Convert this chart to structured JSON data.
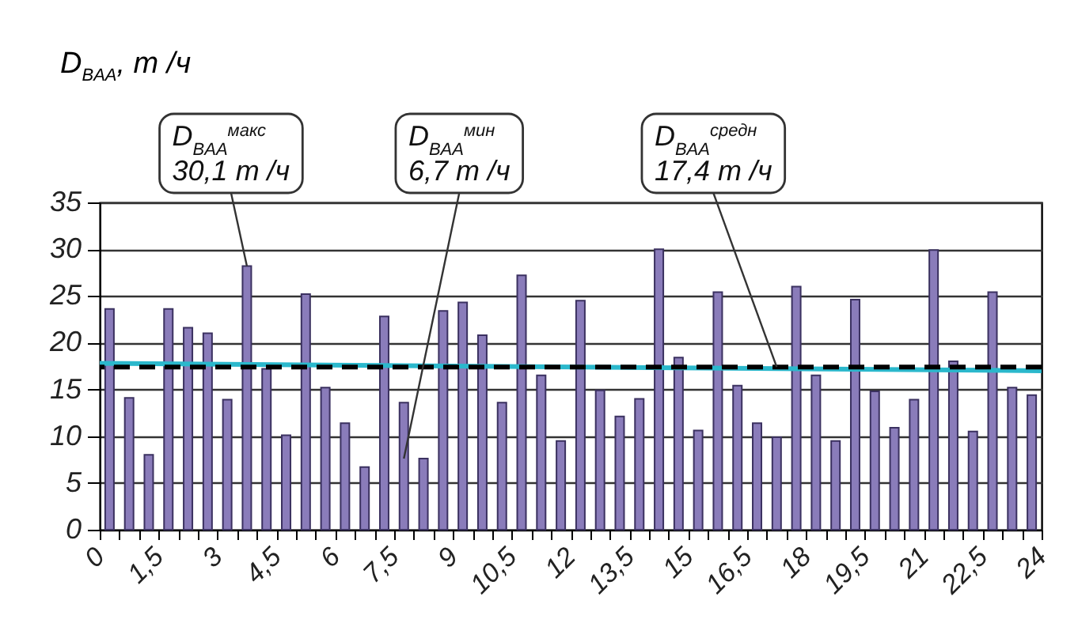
{
  "chart_data": {
    "type": "bar",
    "ylabel": "D$_{BAA}$, т /ч",
    "x": [
      0.25,
      0.75,
      1.25,
      1.75,
      2.25,
      2.75,
      3.25,
      3.75,
      4.25,
      4.75,
      5.25,
      5.75,
      6.25,
      6.75,
      7.25,
      7.75,
      8.25,
      8.75,
      9.25,
      9.75,
      10.25,
      10.75,
      11.25,
      11.75,
      12.25,
      12.75,
      13.25,
      13.75,
      14.25,
      14.75,
      15.25,
      15.75,
      16.25,
      16.75,
      17.25,
      17.75,
      18.25,
      18.75,
      19.25,
      19.75,
      20.25,
      20.75,
      21.25,
      21.75,
      22.25,
      22.75,
      23.25,
      23.75
    ],
    "series": [
      {
        "color": "#8a7cba",
        "values": [
          23.6,
          14.1,
          8.0,
          23.6,
          21.6,
          21.0,
          13.9,
          28.2,
          17.2,
          10.1,
          25.2,
          15.2,
          11.4,
          6.7,
          22.8,
          13.6,
          7.6,
          23.4,
          24.3,
          20.8,
          13.6,
          27.2,
          16.5,
          9.5,
          24.5,
          14.9,
          12.1,
          14.0,
          30.0,
          18.4,
          10.6,
          25.4,
          15.4,
          11.4,
          9.9,
          26.0,
          16.5,
          9.5,
          24.6,
          14.8,
          10.9,
          13.9,
          29.9,
          18.0,
          10.5,
          25.4,
          15.2,
          14.4
        ]
      },
      {
        "type": "line",
        "color": "#2bb8cc",
        "x": [
          0,
          24
        ],
        "values": [
          17.8,
          17.0
        ]
      }
    ],
    "ref_lines": [
      {
        "axis": "y",
        "value": 17.4,
        "color": "#000000",
        "line_style": "dashed"
      }
    ],
    "annotations": [
      {
        "text": "D$_{BAA}$$^{макс}$\n30,1 т /ч",
        "x": 3.75,
        "y": 28.2
      },
      {
        "text": "D$_{BAA}$$^{мин}$\n6,7 т /ч",
        "x": 7.75,
        "y": 7.6
      },
      {
        "text": "D$_{BAA}$$^{средн}$\n17,4 т /ч",
        "x": 17.25,
        "y": 17.4
      }
    ],
    "xlim": [
      0,
      24
    ],
    "xticks": [
      0,
      {
        "value": 0.5,
        "label": null
      },
      {
        "value": 1,
        "label": null
      },
      {
        "value": 1.5,
        "label": "1,5"
      },
      {
        "value": 2,
        "label": null
      },
      {
        "value": 2.5,
        "label": null
      },
      3,
      {
        "value": 3.5,
        "label": null
      },
      {
        "value": 4,
        "label": null
      },
      {
        "value": 4.5,
        "label": "4,5"
      },
      {
        "value": 5,
        "label": null
      },
      {
        "value": 5.5,
        "label": null
      },
      6,
      {
        "value": 6.5,
        "label": null
      },
      {
        "value": 7,
        "label": null
      },
      {
        "value": 7.5,
        "label": "7,5"
      },
      {
        "value": 8,
        "label": null
      },
      {
        "value": 8.5,
        "label": null
      },
      9,
      {
        "value": 9.5,
        "label": null
      },
      {
        "value": 10,
        "label": null
      },
      {
        "value": 10.5,
        "label": "10,5"
      },
      {
        "value": 11,
        "label": null
      },
      {
        "value": 11.5,
        "label": null
      },
      12,
      {
        "value": 12.5,
        "label": null
      },
      {
        "value": 13,
        "label": null
      },
      {
        "value": 13.5,
        "label": "13,5"
      },
      {
        "value": 14,
        "label": null
      },
      {
        "value": 14.5,
        "label": null
      },
      15,
      {
        "value": 15.5,
        "label": null
      },
      {
        "value": 16,
        "label": null
      },
      {
        "value": 16.5,
        "label": "16,5"
      },
      {
        "value": 17,
        "label": null
      },
      {
        "value": 17.5,
        "label": null
      },
      18,
      {
        "value": 18.5,
        "label": null
      },
      {
        "value": 19,
        "label": null
      },
      {
        "value": 19.5,
        "label": "19,5"
      },
      {
        "value": 20,
        "label": null
      },
      {
        "value": 20.5,
        "label": null
      },
      21,
      {
        "value": 21.5,
        "label": null
      },
      {
        "value": 22,
        "label": null
      },
      {
        "value": 22.5,
        "label": "22,5"
      },
      {
        "value": 23,
        "label": null
      },
      {
        "value": 23.5,
        "label": null
      },
      24
    ],
    "ylim": [
      0,
      35
    ],
    "yticks": [
      0,
      5,
      10,
      15,
      20,
      25,
      30,
      35
    ],
    "grid": "y"
  }
}
